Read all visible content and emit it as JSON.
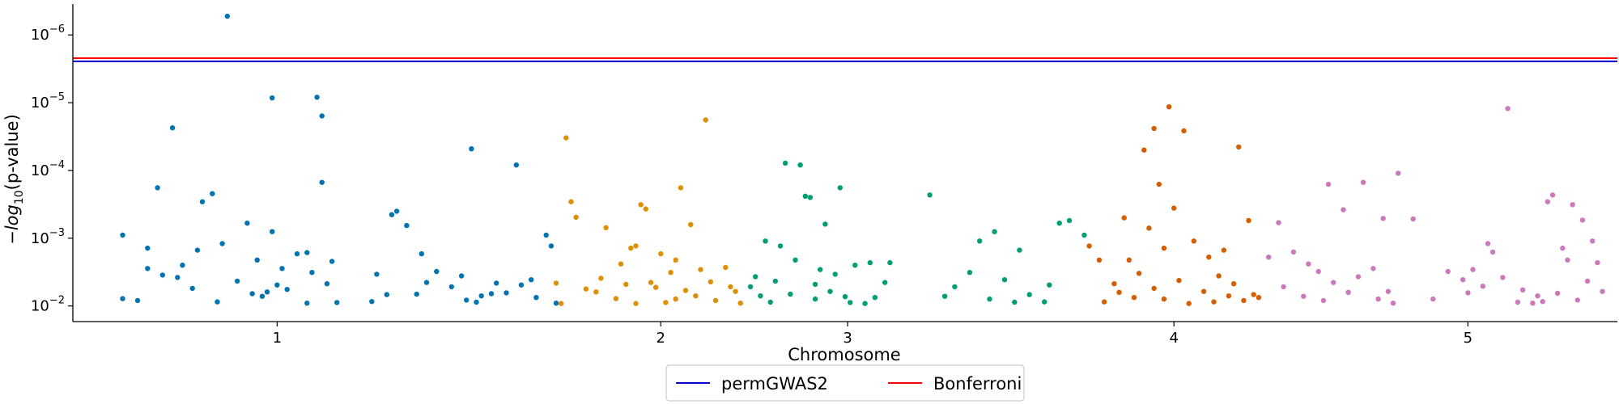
{
  "chart_data": {
    "type": "scatter",
    "title": "",
    "xlabel": "Chromosome",
    "ylabel_prefix": "−log",
    "ylabel_sub": "10",
    "ylabel_suffix": "(p-value)",
    "y_scale": "log",
    "y_inverted": true,
    "ylim": [
      0.017,
      3.5e-07
    ],
    "xlim": [
      0,
      31000000
    ],
    "grid": false,
    "legend_position": "bottom-center",
    "y_ticks": [
      {
        "base": "10",
        "exp": "−6",
        "value": 1e-06
      },
      {
        "base": "10",
        "exp": "−5",
        "value": 1e-05
      },
      {
        "base": "10",
        "exp": "−4",
        "value": 0.0001
      },
      {
        "base": "10",
        "exp": "−3",
        "value": 0.001
      },
      {
        "base": "10",
        "exp": "−2",
        "value": 0.01
      }
    ],
    "x_ticks": [
      {
        "label": "1",
        "pos": 4100000
      },
      {
        "label": "2",
        "pos": 11800000
      },
      {
        "label": "3",
        "pos": 15550000
      },
      {
        "label": "4",
        "pos": 22100000
      },
      {
        "label": "5",
        "pos": 28000000
      }
    ],
    "thresholds": [
      {
        "name": "permGWAS2",
        "value": 2.45e-06,
        "color": "#0000cc"
      },
      {
        "name": "Bonferroni",
        "value": 2.2e-06,
        "color": "#ff0000"
      }
    ],
    "series": [
      {
        "color": "#0173b2",
        "points": [
          [
            3100000,
            5.3e-07
          ],
          [
            2000000,
            2.35e-05
          ],
          [
            4900000,
            8.3e-06
          ],
          [
            5000000,
            1.57e-05
          ],
          [
            4700000,
            0.00163
          ],
          [
            4000000,
            8.5e-06
          ],
          [
            1700000,
            0.00018
          ],
          [
            8000000,
            4.8e-05
          ],
          [
            8900000,
            8.3e-05
          ],
          [
            5000000,
            0.00015
          ],
          [
            1000000,
            0.0009
          ],
          [
            1500000,
            0.0014
          ],
          [
            2600000,
            0.00029
          ],
          [
            2800000,
            0.00022
          ],
          [
            3500000,
            0.0006
          ],
          [
            3000000,
            0.0012
          ],
          [
            2200000,
            0.0025
          ],
          [
            1800000,
            0.0035
          ],
          [
            3700000,
            0.0021
          ],
          [
            4500000,
            0.0017
          ],
          [
            2400000,
            0.0055
          ],
          [
            3300000,
            0.0043
          ],
          [
            3900000,
            0.0062
          ],
          [
            4100000,
            0.0049
          ],
          [
            1300000,
            0.0083
          ],
          [
            3600000,
            0.0066
          ],
          [
            4700000,
            0.0091
          ],
          [
            1000000,
            0.0078
          ],
          [
            2900000,
            0.0087
          ],
          [
            3800000,
            0.0072
          ],
          [
            4300000,
            0.0057
          ],
          [
            2100000,
            0.0038
          ],
          [
            1500000,
            0.0028
          ],
          [
            6500000,
            0.0004
          ],
          [
            6700000,
            0.00065
          ],
          [
            7000000,
            0.0017
          ],
          [
            7300000,
            0.0031
          ],
          [
            7800000,
            0.0036
          ],
          [
            8500000,
            0.0046
          ],
          [
            9300000,
            0.0075
          ],
          [
            6000000,
            0.0086
          ],
          [
            6300000,
            0.0068
          ],
          [
            7600000,
            0.0052
          ],
          [
            8100000,
            0.0088
          ],
          [
            8400000,
            0.0066
          ],
          [
            9000000,
            0.0049
          ],
          [
            9600000,
            0.0013
          ],
          [
            9500000,
            0.0009
          ],
          [
            6900000,
            0.0067
          ],
          [
            7900000,
            0.0082
          ],
          [
            8700000,
            0.0064
          ],
          [
            6100000,
            0.0034
          ],
          [
            7100000,
            0.0045
          ],
          [
            8200000,
            0.0071
          ],
          [
            9200000,
            0.0041
          ],
          [
            9700000,
            0.0091
          ],
          [
            6400000,
            0.00045
          ],
          [
            5200000,
            0.0022
          ],
          [
            4200000,
            0.0028
          ],
          [
            5300000,
            0.0089
          ],
          [
            2500000,
            0.0015
          ],
          [
            4000000,
            0.0008
          ],
          [
            4800000,
            0.0032
          ],
          [
            5100000,
            0.0047
          ]
        ]
      },
      {
        "color": "#de8f05",
        "points": [
          [
            9900000,
            3.3e-05
          ],
          [
            10000000,
            0.00029
          ],
          [
            10100000,
            0.00049
          ],
          [
            9700000,
            0.0046
          ],
          [
            11400000,
            0.00032
          ],
          [
            11500000,
            0.00037
          ],
          [
            12200000,
            0.00018
          ],
          [
            12700000,
            1.8e-05
          ],
          [
            12600000,
            0.0029
          ],
          [
            12400000,
            0.00063
          ],
          [
            11800000,
            0.0017
          ],
          [
            11200000,
            0.0014
          ],
          [
            10700000,
            0.0007
          ],
          [
            11000000,
            0.0024
          ],
          [
            11600000,
            0.0045
          ],
          [
            12000000,
            0.0032
          ],
          [
            12300000,
            0.0059
          ],
          [
            12900000,
            0.0083
          ],
          [
            13300000,
            0.0061
          ],
          [
            10300000,
            0.0056
          ],
          [
            10900000,
            0.0078
          ],
          [
            11300000,
            0.0092
          ],
          [
            11900000,
            0.0089
          ],
          [
            12500000,
            0.0071
          ],
          [
            12800000,
            0.0044
          ],
          [
            13100000,
            0.0027
          ],
          [
            9800000,
            0.0092
          ],
          [
            10500000,
            0.0062
          ],
          [
            11100000,
            0.0048
          ],
          [
            11700000,
            0.0053
          ],
          [
            12100000,
            0.0079
          ],
          [
            13400000,
            0.0091
          ],
          [
            13200000,
            0.0052
          ],
          [
            10600000,
            0.0039
          ],
          [
            11300000,
            0.0013
          ],
          [
            12100000,
            0.0021
          ]
        ]
      },
      {
        "color": "#029e73",
        "points": [
          [
            14300000,
            7.8e-05
          ],
          [
            14600000,
            8.3e-05
          ],
          [
            14700000,
            0.00024
          ],
          [
            14800000,
            0.00025
          ],
          [
            15400000,
            0.00018
          ],
          [
            15100000,
            0.00062
          ],
          [
            14200000,
            0.0013
          ],
          [
            13900000,
            0.0011
          ],
          [
            14500000,
            0.0021
          ],
          [
            15000000,
            0.0029
          ],
          [
            15300000,
            0.0034
          ],
          [
            15700000,
            0.0025
          ],
          [
            16000000,
            0.0023
          ],
          [
            16300000,
            0.0045
          ],
          [
            13600000,
            0.0052
          ],
          [
            13800000,
            0.0071
          ],
          [
            14000000,
            0.0088
          ],
          [
            14400000,
            0.0067
          ],
          [
            14900000,
            0.0079
          ],
          [
            15200000,
            0.0061
          ],
          [
            15600000,
            0.0089
          ],
          [
            15900000,
            0.0092
          ],
          [
            16100000,
            0.0075
          ],
          [
            13700000,
            0.0037
          ],
          [
            14100000,
            0.0043
          ],
          [
            14900000,
            0.0048
          ],
          [
            15500000,
            0.0073
          ],
          [
            16400000,
            0.0023
          ],
          [
            17200000,
            0.00023
          ],
          [
            18200000,
            0.0011
          ],
          [
            18500000,
            0.0008
          ],
          [
            19000000,
            0.0015
          ],
          [
            18000000,
            0.0032
          ],
          [
            17700000,
            0.0052
          ],
          [
            18700000,
            0.0041
          ],
          [
            19200000,
            0.0068
          ],
          [
            19500000,
            0.0087
          ],
          [
            17500000,
            0.0072
          ],
          [
            18400000,
            0.0079
          ],
          [
            18900000,
            0.0088
          ],
          [
            19800000,
            0.0006
          ],
          [
            20000000,
            0.00055
          ],
          [
            20300000,
            0.0009
          ],
          [
            19600000,
            0.0049
          ]
        ]
      },
      {
        "color": "#d55e00",
        "points": [
          [
            21700000,
            2.4e-05
          ],
          [
            21500000,
            5e-05
          ],
          [
            22000000,
            1.15e-05
          ],
          [
            22300000,
            2.6e-05
          ],
          [
            23400000,
            4.5e-05
          ],
          [
            21800000,
            0.00016
          ],
          [
            22100000,
            0.00036
          ],
          [
            21100000,
            0.0005
          ],
          [
            21600000,
            0.00071
          ],
          [
            21900000,
            0.0014
          ],
          [
            22500000,
            0.0011
          ],
          [
            22800000,
            0.0019
          ],
          [
            23100000,
            0.0015
          ],
          [
            23600000,
            0.00055
          ],
          [
            21200000,
            0.0021
          ],
          [
            21400000,
            0.0033
          ],
          [
            21700000,
            0.0055
          ],
          [
            22200000,
            0.0042
          ],
          [
            22700000,
            0.0061
          ],
          [
            23000000,
            0.0036
          ],
          [
            23300000,
            0.0047
          ],
          [
            23700000,
            0.0068
          ],
          [
            21300000,
            0.0075
          ],
          [
            21900000,
            0.0079
          ],
          [
            22400000,
            0.0092
          ],
          [
            22900000,
            0.0087
          ],
          [
            23200000,
            0.0071
          ],
          [
            23500000,
            0.0083
          ],
          [
            20400000,
            0.0013
          ],
          [
            20600000,
            0.0021
          ],
          [
            20900000,
            0.0047
          ],
          [
            21000000,
            0.0063
          ],
          [
            20700000,
            0.0087
          ],
          [
            23800000,
            0.0075
          ]
        ]
      },
      {
        "color": "#cc78bc",
        "points": [
          [
            24200000,
            0.00059
          ],
          [
            24000000,
            0.0019
          ],
          [
            24500000,
            0.0016
          ],
          [
            24800000,
            0.0024
          ],
          [
            25200000,
            0.00016
          ],
          [
            25500000,
            0.00038
          ],
          [
            25900000,
            0.00015
          ],
          [
            26300000,
            0.00051
          ],
          [
            26600000,
            0.00011
          ],
          [
            26900000,
            0.00052
          ],
          [
            25000000,
            0.0031
          ],
          [
            25300000,
            0.0045
          ],
          [
            25800000,
            0.0037
          ],
          [
            26100000,
            0.0028
          ],
          [
            26400000,
            0.0061
          ],
          [
            24300000,
            0.0052
          ],
          [
            24700000,
            0.0072
          ],
          [
            25100000,
            0.0083
          ],
          [
            25600000,
            0.0063
          ],
          [
            26200000,
            0.0079
          ],
          [
            26500000,
            0.0091
          ],
          [
            27300000,
            0.0079
          ],
          [
            27900000,
            0.0041
          ],
          [
            28400000,
            0.0012
          ],
          [
            28500000,
            0.0016
          ],
          [
            28100000,
            0.0029
          ],
          [
            28700000,
            0.0038
          ],
          [
            29100000,
            0.0058
          ],
          [
            29400000,
            0.0071
          ],
          [
            29800000,
            0.0065
          ],
          [
            30200000,
            0.0082
          ],
          [
            28800000,
            1.22e-05
          ],
          [
            29700000,
            0.00023
          ],
          [
            29600000,
            0.00029
          ],
          [
            30100000,
            0.00032
          ],
          [
            30300000,
            0.00054
          ],
          [
            30500000,
            0.0011
          ],
          [
            29900000,
            0.0014
          ],
          [
            30000000,
            0.0021
          ],
          [
            28300000,
            0.0051
          ],
          [
            29000000,
            0.0088
          ],
          [
            29300000,
            0.0091
          ],
          [
            30400000,
            0.0043
          ],
          [
            30600000,
            0.0023
          ],
          [
            27600000,
            0.0031
          ],
          [
            28000000,
            0.0064
          ],
          [
            29500000,
            0.0086
          ],
          [
            30700000,
            0.0061
          ]
        ]
      }
    ]
  }
}
